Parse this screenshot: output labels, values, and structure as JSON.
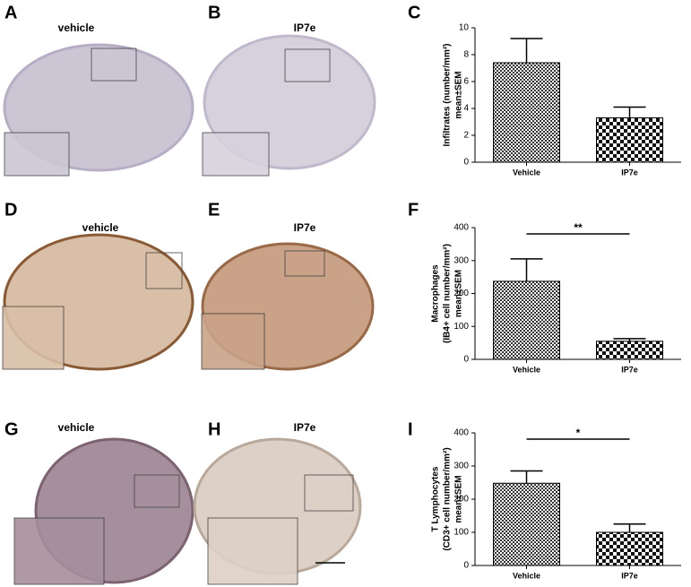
{
  "image_panels": [
    {
      "letter": "A",
      "label": "vehicle"
    },
    {
      "letter": "B",
      "label": "IP7e"
    },
    {
      "letter": "D",
      "label": "vehicle"
    },
    {
      "letter": "E",
      "label": "IP7e"
    },
    {
      "letter": "G",
      "label": "vehicle"
    },
    {
      "letter": "H",
      "label": "IP7e"
    }
  ],
  "chart_data": [
    {
      "type": "bar",
      "panel_label": "C",
      "y_label": [
        "Infiltrates (number/mm²)",
        "mean±SEM"
      ],
      "categories": [
        "Vehicle",
        "IP7e"
      ],
      "values": [
        7.4,
        3.3
      ],
      "errors": [
        1.8,
        0.8
      ],
      "ylim": [
        0,
        10
      ],
      "yticks": [
        0,
        2,
        4,
        6,
        8,
        10
      ]
    },
    {
      "type": "bar",
      "panel_label": "F",
      "y_label": [
        "Macrophages",
        "(IB4+ cell number/mm²)",
        "mean±SEM"
      ],
      "categories": [
        "Vehicle",
        "IP7e"
      ],
      "values": [
        237,
        55
      ],
      "errors": [
        68,
        8
      ],
      "ylim": [
        0,
        400
      ],
      "yticks": [
        0,
        100,
        200,
        300,
        400
      ],
      "annotation": "**"
    },
    {
      "type": "bar",
      "panel_label": "I",
      "y_label": [
        "T Lymphocytes",
        "(CD3+ cell number/mm²)",
        "mean±SEM"
      ],
      "categories": [
        "Vehicle",
        "IP7e"
      ],
      "values": [
        248,
        100
      ],
      "errors": [
        37,
        25
      ],
      "ylim": [
        0,
        400
      ],
      "yticks": [
        0,
        100,
        200,
        300,
        400
      ],
      "annotation": "*"
    }
  ]
}
